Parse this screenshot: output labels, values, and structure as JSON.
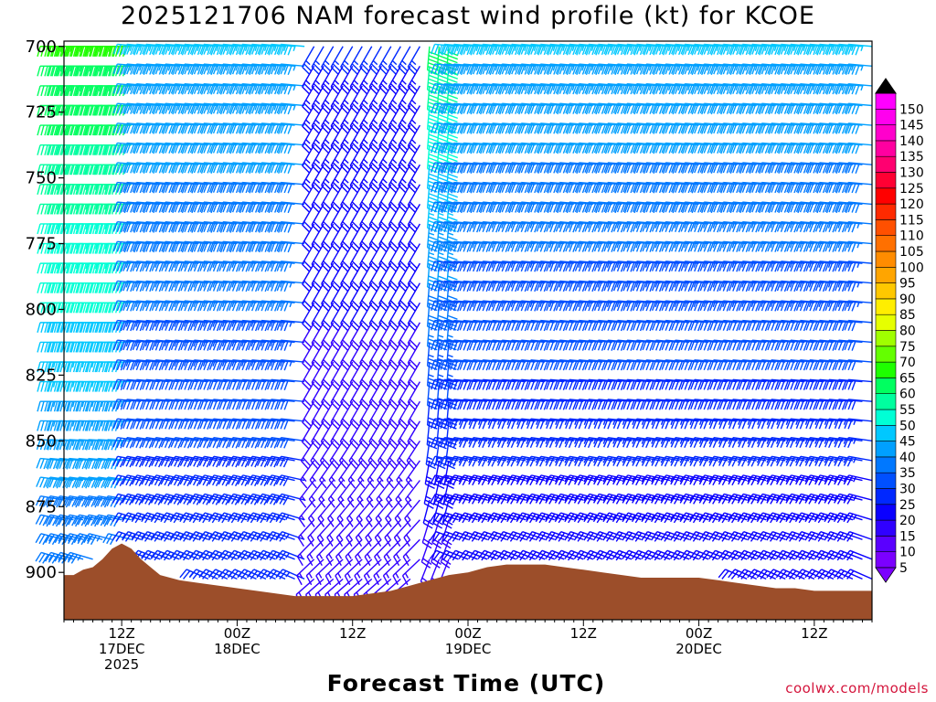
{
  "title": "2025121706 NAM forecast wind profile (kt) for KCOE",
  "xlabel": "Forecast Time (UTC)",
  "credit": "coolwx.com/models",
  "colors": {
    "terrain": "#9c4e2a",
    "background": "#ffffff"
  },
  "chart_data": {
    "type": "wind_barb_profile",
    "title": "2025121706 NAM forecast wind profile (kt) for KCOE",
    "xlabel": "Forecast Time (UTC)",
    "ylabel": "",
    "y_axis": {
      "unit": "hPa",
      "inverted": true,
      "ylim": [
        918,
        698
      ],
      "ticks": [
        700,
        725,
        750,
        775,
        800,
        825,
        850,
        875,
        900
      ]
    },
    "x_axis": {
      "forecast_hours_range": [
        0,
        84
      ],
      "tick_labels": [
        {
          "hour": 6,
          "lines": [
            "12Z",
            "17DEC",
            "2025"
          ]
        },
        {
          "hour": 18,
          "lines": [
            "00Z",
            "18DEC"
          ]
        },
        {
          "hour": 30,
          "lines": [
            "12Z"
          ]
        },
        {
          "hour": 42,
          "lines": [
            "00Z",
            "19DEC"
          ]
        },
        {
          "hour": 54,
          "lines": [
            "12Z"
          ]
        },
        {
          "hour": 66,
          "lines": [
            "00Z",
            "20DEC"
          ]
        },
        {
          "hour": 78,
          "lines": [
            "12Z"
          ]
        }
      ]
    },
    "colorbar": {
      "unit": "kt",
      "levels": [
        5,
        10,
        15,
        20,
        25,
        30,
        35,
        40,
        45,
        50,
        55,
        60,
        65,
        70,
        75,
        80,
        85,
        90,
        95,
        100,
        105,
        110,
        115,
        120,
        125,
        130,
        135,
        140,
        145,
        150
      ],
      "colors": [
        "#7b00ff",
        "#5a00ff",
        "#3000ff",
        "#0a00ff",
        "#0028ff",
        "#0050ff",
        "#0078ff",
        "#00a0ff",
        "#00c8ff",
        "#00ffd5",
        "#00ff9f",
        "#00ff60",
        "#1eff00",
        "#64ff00",
        "#a0ff00",
        "#e6ff00",
        "#ffee00",
        "#ffc800",
        "#ffa500",
        "#ff8c00",
        "#ff7000",
        "#ff5000",
        "#ff2a00",
        "#ff0000",
        "#ff0033",
        "#ff0070",
        "#ff00a0",
        "#ff00cc",
        "#ff00ee",
        "#ff00ff"
      ]
    },
    "surface_pressure_profile": {
      "hours": [
        0,
        1,
        2,
        3,
        4,
        5,
        6,
        7,
        8,
        9,
        10,
        12,
        14,
        16,
        18,
        20,
        22,
        24,
        26,
        28,
        30,
        32,
        34,
        36,
        38,
        40,
        42,
        44,
        46,
        48,
        50,
        52,
        54,
        56,
        58,
        60,
        62,
        64,
        66,
        68,
        70,
        72,
        74,
        76,
        78,
        80,
        82,
        84
      ],
      "pressure": [
        901,
        901,
        899,
        898,
        895,
        891,
        889,
        891,
        895,
        898,
        901,
        903,
        904,
        905,
        906,
        907,
        908,
        909,
        909,
        909,
        909,
        908,
        907,
        905,
        903,
        901,
        900,
        898,
        897,
        897,
        897,
        898,
        899,
        900,
        901,
        902,
        902,
        902,
        902,
        903,
        904,
        905,
        906,
        906,
        907,
        907,
        907,
        907
      ]
    },
    "wind_regimes": [
      {
        "hours": [
          0,
          8
        ],
        "direction_deg": 270,
        "speed_kt_top": 65,
        "speed_kt_bottom": 35
      },
      {
        "hours": [
          8,
          26
        ],
        "direction_deg": 275,
        "speed_kt_top": 45,
        "speed_kt_bottom": 25
      },
      {
        "hours": [
          26,
          38
        ],
        "direction_deg": 210,
        "speed_kt_top": 25,
        "speed_kt_bottom": 15
      },
      {
        "hours": [
          38,
          41
        ],
        "direction_deg": 185,
        "speed_kt_top": 60,
        "speed_kt_bottom": 15
      },
      {
        "hours": [
          41,
          84
        ],
        "direction_deg": 275,
        "speed_kt_top": 45,
        "speed_kt_bottom": 20
      }
    ]
  }
}
